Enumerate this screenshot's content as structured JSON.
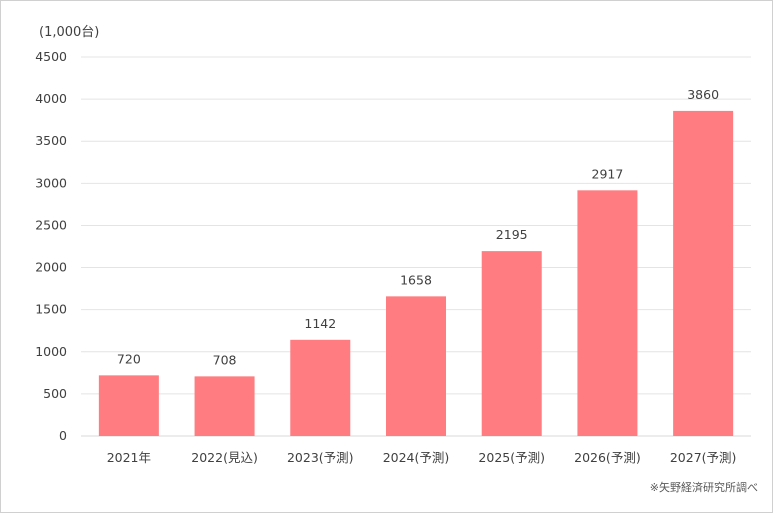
{
  "chart_data": {
    "type": "bar",
    "unit_label": "(1,000台)",
    "categories": [
      "2021年",
      "2022(見込)",
      "2023(予測)",
      "2024(予測)",
      "2025(予測)",
      "2026(予測)",
      "2027(予測)"
    ],
    "values": [
      720,
      708,
      1142,
      1658,
      2195,
      2917,
      3860
    ],
    "ylim": [
      0,
      4500
    ],
    "yticks": [
      0,
      500,
      1000,
      1500,
      2000,
      2500,
      3000,
      3500,
      4000,
      4500
    ],
    "grid": true,
    "bar_color": "#ff7c80",
    "source": "※矢野経済研究所調べ"
  }
}
